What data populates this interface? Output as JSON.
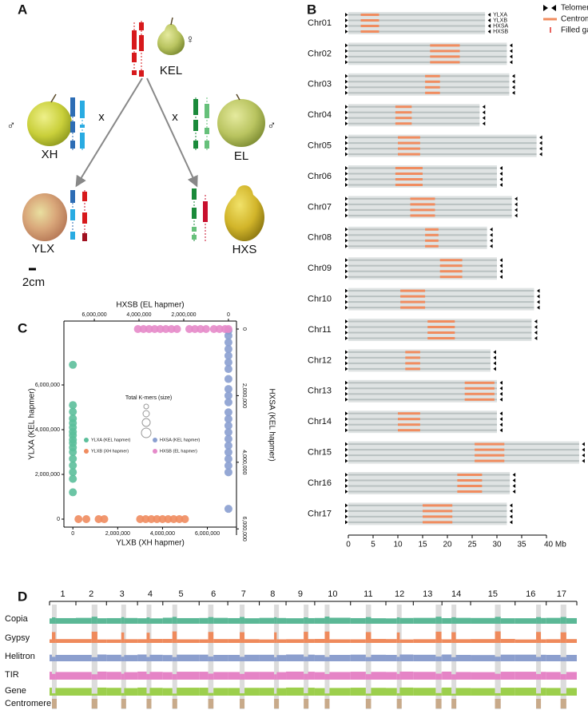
{
  "panel_a": {
    "label": "A",
    "female": "KEL",
    "female_symbol": "♀",
    "male_left": "XH",
    "male_right": "EL",
    "male_symbol": "♂",
    "cross": "x",
    "offspring_left": "YLX",
    "offspring_right": "HXS",
    "scale": "2cm"
  },
  "panel_b": {
    "label": "B",
    "legend": {
      "telomere": "Telomere",
      "centromere": "Centromere",
      "gaps": "Filled gaps"
    },
    "haplotypes": [
      "YLXA",
      "YLXB",
      "HXSA",
      "HXSB"
    ],
    "xlim": [
      0,
      40
    ],
    "xticks": [
      0,
      5,
      10,
      15,
      20,
      25,
      30,
      35,
      {
        "value": 40,
        "label": "40 Mb"
      }
    ],
    "chromosomes": [
      {
        "name": "Chr01",
        "length": 27.6,
        "centromere": [
          2.5,
          6.2
        ]
      },
      {
        "name": "Chr02",
        "length": 32,
        "centromere": [
          16.5,
          22.5
        ]
      },
      {
        "name": "Chr03",
        "length": 32.5,
        "centromere": [
          15.5,
          18.5
        ]
      },
      {
        "name": "Chr04",
        "length": 26.5,
        "centromere": [
          9.5,
          12.8
        ]
      },
      {
        "name": "Chr05",
        "length": 38,
        "centromere": [
          10,
          14.5
        ]
      },
      {
        "name": "Chr06",
        "length": 30,
        "centromere": [
          9.5,
          15
        ]
      },
      {
        "name": "Chr07",
        "length": 33,
        "centromere": [
          12.5,
          17.5
        ]
      },
      {
        "name": "Chr08",
        "length": 28,
        "centromere": [
          15.5,
          18.2
        ]
      },
      {
        "name": "Chr09",
        "length": 30,
        "centromere": [
          18.5,
          23
        ]
      },
      {
        "name": "Chr10",
        "length": 37.5,
        "centromere": [
          10.5,
          15.5
        ]
      },
      {
        "name": "Chr11",
        "length": 37,
        "centromere": [
          16,
          21.5
        ]
      },
      {
        "name": "Chr12",
        "length": 28.7,
        "centromere": [
          11.5,
          14.5
        ]
      },
      {
        "name": "Chr13",
        "length": 30,
        "centromere": [
          23.5,
          29.5
        ]
      },
      {
        "name": "Chr14",
        "length": 30,
        "centromere": [
          10,
          14.5
        ]
      },
      {
        "name": "Chr15",
        "length": 46.6,
        "centromere": [
          25.5,
          31.5
        ]
      },
      {
        "name": "Chr16",
        "length": 32.6,
        "centromere": [
          22,
          27
        ]
      },
      {
        "name": "Chr17",
        "length": 32,
        "centromere": [
          15,
          21
        ]
      }
    ]
  },
  "panel_c": {
    "label": "C",
    "type": "scatter",
    "xlabel": "YLXB (XH hapmer)",
    "ylabel": "YLXA (KEL hapmer)",
    "x2label": "HXSB (EL hapmer)",
    "y2label": "HXSA (KEL hapmer)",
    "size_label": "Total K-mers (size)",
    "xlim": [
      -400000,
      7300000
    ],
    "ylim": [
      -357000,
      8857000
    ],
    "x2lim": [
      7360000,
      -360000
    ],
    "y2lim": [
      -240000,
      6187000
    ],
    "xticks": [
      0,
      {
        "value": 2000000,
        "label": "2,000,000"
      },
      {
        "value": 4000000,
        "label": "4,000,000"
      },
      {
        "value": 6000000,
        "label": "6,000,000"
      }
    ],
    "yticks": [
      0,
      {
        "value": 2000000,
        "label": "2,000,000"
      },
      {
        "value": 4000000,
        "label": "4,000,000"
      },
      {
        "value": 6000000,
        "label": "6,000,000"
      }
    ],
    "x2ticks": [
      {
        "value": 6000000,
        "label": "6,000,000"
      },
      {
        "value": 4000000,
        "label": "4,000,000"
      },
      {
        "value": 2000000,
        "label": "2,000,000"
      },
      0
    ],
    "y2ticks": [
      0,
      {
        "value": 2000000,
        "label": "2,000,000"
      },
      {
        "value": 4000000,
        "label": "4,000,000"
      },
      {
        "value": 6000000,
        "label": "6,000,000"
      }
    ],
    "series": [
      {
        "name": "YLXA (KEL hapmer)",
        "color": "#5cbf9b",
        "axis": "y",
        "values": [
          6900000,
          5100000,
          4800000,
          4500000,
          4300000,
          4100000,
          3900000,
          3750000,
          3550000,
          3400000,
          3200000,
          3000000,
          2700000,
          2400000,
          2100000,
          1800000,
          1200000
        ]
      },
      {
        "name": "YLXB (XH hapmer)",
        "color": "#f08c5f",
        "axis": "x",
        "values": [
          250000,
          600000,
          1150000,
          1400000,
          3000000,
          3250000,
          3500000,
          3750000,
          4000000,
          4250000,
          4500000,
          4750000,
          5000000
        ]
      },
      {
        "name": "HXSA (KEL hapmer)",
        "color": "#8a9fd0",
        "axis": "y2",
        "values": [
          50000,
          200000,
          400000,
          600000,
          800000,
          1000000,
          1200000,
          1500000,
          1800000,
          2000000,
          2200000,
          2500000,
          2700000,
          2900000,
          3100000,
          3300000,
          3500000,
          3700000,
          3900000,
          4100000,
          4300000,
          5400000
        ]
      },
      {
        "name": "HXSB (EL hapmer)",
        "color": "#e58ac9",
        "axis": "x2",
        "values": [
          0,
          150000,
          400000,
          650000,
          1000000,
          1250000,
          1500000,
          1750000,
          2300000,
          2550000,
          2800000,
          3050000,
          3300000,
          3550000,
          3800000,
          4050000
        ]
      }
    ]
  },
  "panel_d": {
    "label": "D",
    "numbers": [
      "1",
      "2",
      "3",
      "4",
      "5",
      "6",
      "7",
      "8",
      "9",
      "10",
      "11",
      "12",
      "13",
      "14",
      "15",
      "16",
      "17"
    ],
    "ylim": [
      0,
      100
    ],
    "centromere_label": "Centromere",
    "centromere_color": "#c8aa8a",
    "tracks": [
      {
        "name": "Copia",
        "color": "#5bb896",
        "values": [
          42,
          50,
          44,
          46,
          55,
          43,
          44,
          52,
          45,
          43,
          50,
          42,
          47,
          54,
          44,
          45,
          52,
          46,
          44,
          53,
          43,
          46,
          51,
          45,
          43,
          50,
          44,
          45,
          56,
          47,
          44,
          52,
          43,
          42,
          50,
          45,
          46,
          55,
          44,
          44,
          51,
          46,
          45,
          54,
          43,
          43,
          52,
          45,
          46,
          53,
          44
        ]
      },
      {
        "name": "Gypsy",
        "color": "#ef8a5c",
        "values": [
          28,
          85,
          30,
          30,
          88,
          27,
          27,
          82,
          29,
          29,
          80,
          31,
          31,
          90,
          28,
          28,
          86,
          30,
          30,
          84,
          29,
          27,
          83,
          28,
          29,
          87,
          30,
          31,
          89,
          28,
          28,
          85,
          31,
          30,
          82,
          27,
          29,
          88,
          30,
          28,
          84,
          29,
          30,
          90,
          31,
          27,
          86,
          28,
          29,
          83,
          30
        ]
      },
      {
        "name": "Helitron",
        "color": "#8c9fce",
        "values": [
          52,
          35,
          50,
          50,
          32,
          53,
          51,
          36,
          49,
          53,
          34,
          51,
          49,
          33,
          52,
          52,
          37,
          50,
          50,
          35,
          51,
          51,
          32,
          49,
          53,
          36,
          52,
          49,
          34,
          50,
          52,
          33,
          51,
          50,
          35,
          53,
          51,
          37,
          49,
          53,
          32,
          50,
          49,
          36,
          52,
          52,
          34,
          51,
          50,
          33,
          50
        ]
      },
      {
        "name": "TIR",
        "color": "#e584c6",
        "values": [
          62,
          45,
          60,
          60,
          42,
          63,
          61,
          46,
          59,
          63,
          44,
          61,
          59,
          43,
          62,
          62,
          47,
          60,
          60,
          45,
          61,
          61,
          42,
          59,
          63,
          46,
          62,
          59,
          44,
          60,
          62,
          43,
          61,
          60,
          45,
          63,
          61,
          47,
          59,
          63,
          42,
          60,
          59,
          46,
          62,
          62,
          44,
          61,
          60,
          43,
          60
        ]
      },
      {
        "name": "Gene",
        "color": "#9ccf4c",
        "values": [
          62,
          18,
          60,
          60,
          15,
          63,
          61,
          20,
          59,
          63,
          17,
          61,
          59,
          16,
          62,
          62,
          21,
          60,
          60,
          18,
          61,
          61,
          15,
          59,
          63,
          19,
          62,
          59,
          17,
          60,
          62,
          16,
          61,
          60,
          18,
          63,
          61,
          20,
          59,
          63,
          15,
          60,
          59,
          19,
          62,
          62,
          17,
          61,
          60,
          16,
          60
        ]
      }
    ]
  }
}
